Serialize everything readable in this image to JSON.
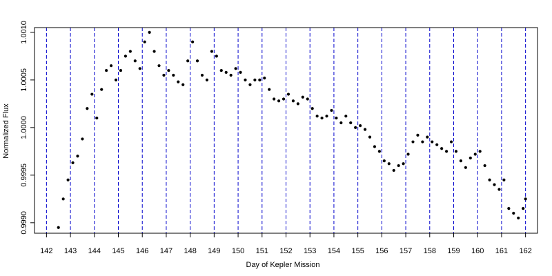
{
  "chart_data": {
    "type": "scatter",
    "title": "",
    "xlabel": "Day of Kepler Mission",
    "ylabel": "Normalized Flux",
    "xlim": [
      141.5,
      162.5
    ],
    "ylim": [
      0.99889,
      1.00105
    ],
    "x_ticks": [
      142,
      143,
      144,
      145,
      146,
      147,
      148,
      149,
      150,
      151,
      152,
      153,
      154,
      155,
      156,
      157,
      158,
      159,
      160,
      161,
      162
    ],
    "x_tick_labels": [
      "142",
      "143",
      "144",
      "145",
      "146",
      "147",
      "148",
      "149",
      "150",
      "151",
      "152",
      "153",
      "154",
      "155",
      "156",
      "157",
      "158",
      "159",
      "160",
      "161",
      "162"
    ],
    "y_ticks": [
      0.999,
      0.9995,
      1.0,
      1.0005,
      1.001
    ],
    "y_tick_labels": [
      "0.9990",
      "0.9995",
      "1.0000",
      "1.0005",
      "1.0010"
    ],
    "vertical_reference_lines": [
      142,
      143,
      144,
      145,
      146,
      147,
      148,
      149,
      150,
      151,
      152,
      153,
      154,
      155,
      156,
      157,
      158,
      159,
      160,
      161,
      162
    ],
    "reference_line_color": "#0000cc",
    "point_color": "#000000",
    "grid": false,
    "series": [
      {
        "points": [
          [
            142.5,
            0.99895
          ],
          [
            142.7,
            0.99925
          ],
          [
            142.9,
            0.99945
          ],
          [
            143.1,
            0.99963
          ],
          [
            143.3,
            0.9997
          ],
          [
            143.5,
            0.99988
          ],
          [
            143.7,
            1.0002
          ],
          [
            143.9,
            1.00035
          ],
          [
            144.1,
            1.0001
          ],
          [
            144.3,
            1.0004
          ],
          [
            144.5,
            1.0006
          ],
          [
            144.7,
            1.00065
          ],
          [
            144.9,
            1.0005
          ],
          [
            145.1,
            1.0006
          ],
          [
            145.3,
            1.00075
          ],
          [
            145.5,
            1.0008
          ],
          [
            145.7,
            1.0007
          ],
          [
            145.9,
            1.00062
          ],
          [
            146.1,
            1.0009
          ],
          [
            146.3,
            1.001
          ],
          [
            146.5,
            1.0008
          ],
          [
            146.7,
            1.00065
          ],
          [
            146.9,
            1.00055
          ],
          [
            147.1,
            1.0006
          ],
          [
            147.3,
            1.00055
          ],
          [
            147.5,
            1.00048
          ],
          [
            147.7,
            1.00045
          ],
          [
            147.9,
            1.0007
          ],
          [
            148.1,
            1.0009
          ],
          [
            148.3,
            1.0007
          ],
          [
            148.5,
            1.00055
          ],
          [
            148.7,
            1.0005
          ],
          [
            148.9,
            1.0008
          ],
          [
            149.1,
            1.00075
          ],
          [
            149.3,
            1.0006
          ],
          [
            149.5,
            1.00058
          ],
          [
            149.7,
            1.00055
          ],
          [
            149.9,
            1.00062
          ],
          [
            150.1,
            1.00058
          ],
          [
            150.3,
            1.0005
          ],
          [
            150.5,
            1.00045
          ],
          [
            150.7,
            1.0005
          ],
          [
            150.9,
            1.0005
          ],
          [
            151.1,
            1.00052
          ],
          [
            151.3,
            1.0004
          ],
          [
            151.5,
            1.0003
          ],
          [
            151.7,
            1.00028
          ],
          [
            151.9,
            1.0003
          ],
          [
            152.1,
            1.00035
          ],
          [
            152.3,
            1.00028
          ],
          [
            152.5,
            1.00025
          ],
          [
            152.7,
            1.00032
          ],
          [
            152.9,
            1.0003
          ],
          [
            153.1,
            1.0002
          ],
          [
            153.3,
            1.00012
          ],
          [
            153.5,
            1.0001
          ],
          [
            153.7,
            1.00012
          ],
          [
            153.9,
            1.00018
          ],
          [
            154.1,
            1.0001
          ],
          [
            154.3,
            1.00005
          ],
          [
            154.5,
            1.00012
          ],
          [
            154.7,
            1.00005
          ],
          [
            154.9,
            1.0
          ],
          [
            155.1,
            1.00002
          ],
          [
            155.3,
            0.99998
          ],
          [
            155.5,
            0.9999
          ],
          [
            155.7,
            0.9998
          ],
          [
            155.9,
            0.99975
          ],
          [
            156.1,
            0.99965
          ],
          [
            156.3,
            0.99962
          ],
          [
            156.5,
            0.99955
          ],
          [
            156.7,
            0.9996
          ],
          [
            156.9,
            0.99962
          ],
          [
            157.1,
            0.99972
          ],
          [
            157.3,
            0.99985
          ],
          [
            157.5,
            0.99992
          ],
          [
            157.7,
            0.99985
          ],
          [
            157.9,
            0.9999
          ],
          [
            158.1,
            0.99985
          ],
          [
            158.3,
            0.99982
          ],
          [
            158.5,
            0.99978
          ],
          [
            158.7,
            0.99975
          ],
          [
            158.9,
            0.99985
          ],
          [
            159.1,
            0.99975
          ],
          [
            159.3,
            0.99965
          ],
          [
            159.5,
            0.99958
          ],
          [
            159.7,
            0.99968
          ],
          [
            159.9,
            0.99972
          ],
          [
            160.1,
            0.99975
          ],
          [
            160.3,
            0.9996
          ],
          [
            160.5,
            0.99945
          ],
          [
            160.7,
            0.9994
          ],
          [
            160.9,
            0.99935
          ],
          [
            161.1,
            0.99945
          ],
          [
            161.3,
            0.99915
          ],
          [
            161.5,
            0.9991
          ],
          [
            161.7,
            0.99905
          ],
          [
            161.9,
            0.99915
          ],
          [
            162.0,
            0.99925
          ]
        ]
      }
    ]
  }
}
